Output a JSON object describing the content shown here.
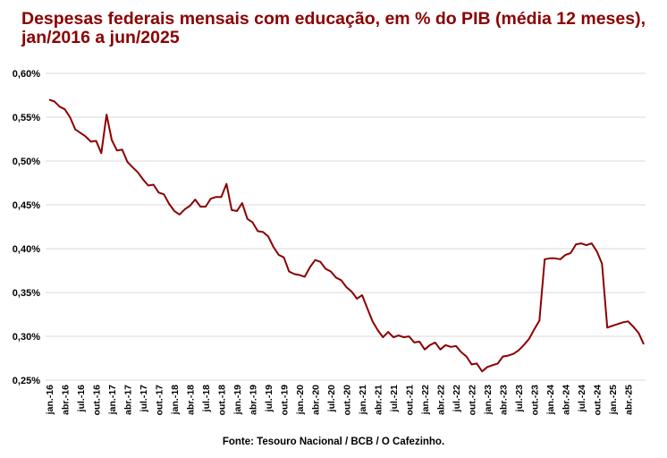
{
  "title": "Despesas federais mensais com educação, em % do PIB (média 12 meses), jan/2016 a jun/2025",
  "source": "Fonte: Tesouro Nacional / BCB / O Cafezinho.",
  "colors": {
    "title": "#8b0000",
    "line": "#8b0000",
    "grid": "#d9d9d9"
  },
  "chart_data": {
    "type": "line",
    "ylim": [
      0.25,
      0.6
    ],
    "grid": true,
    "y_ticks": [
      0.25,
      0.3,
      0.35,
      0.4,
      0.45,
      0.5,
      0.55,
      0.6
    ],
    "y_tick_labels": [
      "0,25%",
      "0,30%",
      "0,35%",
      "0,40%",
      "0,45%",
      "0,50%",
      "0,55%",
      "0,60%"
    ],
    "x_tick_labels": [
      "jan.-16",
      "abr.-16",
      "jul.-16",
      "out.-16",
      "jan.-17",
      "abr.-17",
      "jul.-17",
      "out.-17",
      "jan.-18",
      "abr.-18",
      "jul.-18",
      "out.-18",
      "jan.-19",
      "abr.-19",
      "jul.-19",
      "out.-19",
      "jan.-20",
      "abr.-20",
      "jul.-20",
      "out.-20",
      "jan.-21",
      "abr.-21",
      "jul.-21",
      "out.-21",
      "jan.-22",
      "abr.-22",
      "jul.-22",
      "out.-22",
      "jan.-23",
      "abr.-23",
      "jul.-23",
      "out.-23",
      "jan.-24",
      "abr.-24",
      "jul.-24",
      "out.-24",
      "jan.-25",
      "abr.-25"
    ],
    "x_start": "jan/2016",
    "x_end": "jun/2025",
    "series": [
      {
        "values": [
          0.57,
          0.568,
          0.562,
          0.559,
          0.55,
          0.536,
          0.532,
          0.528,
          0.522,
          0.523,
          0.509,
          0.553,
          0.524,
          0.512,
          0.513,
          0.499,
          0.493,
          0.487,
          0.479,
          0.472,
          0.473,
          0.464,
          0.462,
          0.451,
          0.443,
          0.439,
          0.445,
          0.449,
          0.456,
          0.448,
          0.448,
          0.457,
          0.459,
          0.459,
          0.474,
          0.444,
          0.443,
          0.452,
          0.434,
          0.43,
          0.42,
          0.419,
          0.414,
          0.402,
          0.393,
          0.39,
          0.374,
          0.371,
          0.37,
          0.368,
          0.379,
          0.387,
          0.385,
          0.377,
          0.374,
          0.367,
          0.364,
          0.356,
          0.351,
          0.343,
          0.347,
          0.332,
          0.317,
          0.307,
          0.299,
          0.305,
          0.299,
          0.301,
          0.299,
          0.3,
          0.293,
          0.294,
          0.285,
          0.29,
          0.293,
          0.285,
          0.29,
          0.288,
          0.289,
          0.282,
          0.277,
          0.268,
          0.269,
          0.26,
          0.265,
          0.267,
          0.269,
          0.277,
          0.278,
          0.28,
          0.284,
          0.29,
          0.297,
          0.308,
          0.318,
          0.388,
          0.389,
          0.389,
          0.388,
          0.393,
          0.395,
          0.405,
          0.406,
          0.404,
          0.406,
          0.397,
          0.383,
          0.31,
          0.312,
          0.314,
          0.316,
          0.317,
          0.311,
          0.304,
          0.291
        ]
      }
    ]
  }
}
